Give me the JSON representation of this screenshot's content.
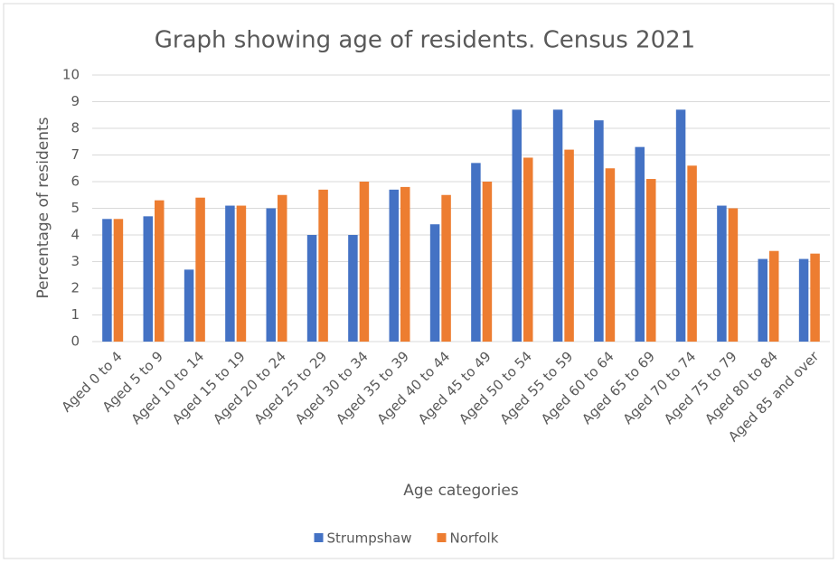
{
  "chart_data": {
    "type": "bar",
    "title": "Graph showing age of residents. Census 2021",
    "xlabel": "Age categories",
    "ylabel": "Percentage of residents",
    "categories": [
      "Aged 0 to 4",
      "Aged 5 to 9",
      "Aged 10 to 14",
      "Aged 15 to 19",
      "Aged 20 to 24",
      "Aged 25 to 29",
      "Aged 30 to 34",
      "Aged 35 to 39",
      "Aged 40 to 44",
      "Aged 45 to 49",
      "Aged 50 to 54",
      "Aged 55 to 59",
      "Aged 60 to 64",
      "Aged 65 to 69",
      "Aged 70 to 74",
      "Aged 75 to 79",
      "Aged 80 to 84",
      "Aged 85 and over"
    ],
    "series": [
      {
        "name": "Strumpshaw",
        "color": "#4472c4",
        "values": [
          4.6,
          4.7,
          2.7,
          5.1,
          5.0,
          4.0,
          4.0,
          5.7,
          4.4,
          6.7,
          8.7,
          8.7,
          8.3,
          7.3,
          8.7,
          5.1,
          3.1,
          3.1
        ]
      },
      {
        "name": "Norfolk",
        "color": "#ed7d31",
        "values": [
          4.6,
          5.3,
          5.4,
          5.1,
          5.5,
          5.7,
          6.0,
          5.8,
          5.5,
          6.0,
          6.9,
          7.2,
          6.5,
          6.1,
          6.6,
          5.0,
          3.4,
          3.3
        ]
      }
    ],
    "ylim": [
      0,
      10
    ],
    "yticks": [
      0,
      1,
      2,
      3,
      4,
      5,
      6,
      7,
      8,
      9,
      10
    ],
    "grid": true,
    "legend": "bottom"
  }
}
